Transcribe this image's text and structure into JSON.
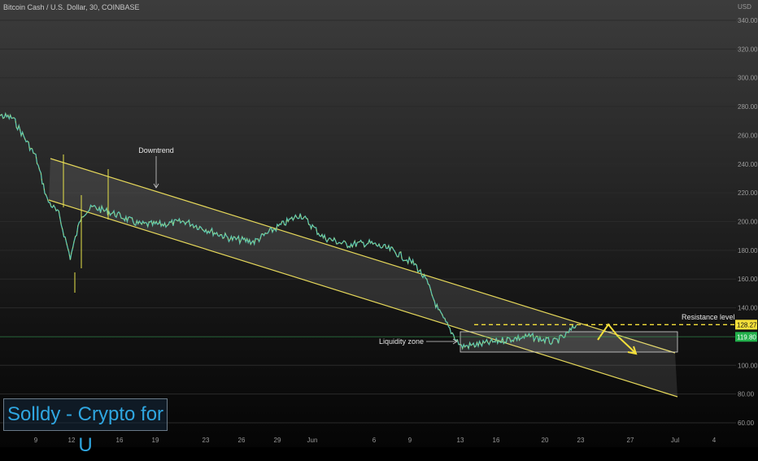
{
  "header": {
    "symbol_title": "Bitcoin Cash / U.S. Dollar, 30, COINBASE"
  },
  "watermark": {
    "text": "Solldy - Crypto for U"
  },
  "colors": {
    "price_line": "#5ec8b0",
    "price_alt": "#e7e34a",
    "channel": "#e6d85a",
    "resistance": "#f5e03a",
    "last_price": "#22b14c",
    "grid": "#2a2a2a"
  },
  "chart_data": {
    "type": "line",
    "title": "Bitcoin Cash / U.S. Dollar, 30, COINBASE",
    "y_axis_label": "USD",
    "ylim": [
      60,
      340
    ],
    "y_ticks": [
      60,
      80,
      100,
      120,
      140,
      160,
      180,
      200,
      220,
      240,
      260,
      280,
      300,
      320,
      340
    ],
    "y_tick_labels": [
      "60.00",
      "80.00",
      "100.00",
      "120.00",
      "140.00",
      "160.00",
      "180.00",
      "200.00",
      "220.00",
      "240.00",
      "260.00",
      "280.00",
      "300.00",
      "320.00",
      "340.00"
    ],
    "x_tick_labels": [
      "9",
      "12",
      "16",
      "19",
      "23",
      "26",
      "29",
      "Jun",
      "6",
      "9",
      "13",
      "16",
      "20",
      "23",
      "27",
      "Jul",
      "4"
    ],
    "series": [
      {
        "x": [
          "May 5",
          "May 7",
          "May 9",
          "May 10",
          "May 11",
          "May 12",
          "May 13",
          "May 14",
          "May 16",
          "May 18",
          "May 20",
          "May 22",
          "May 24",
          "May 26",
          "May 28",
          "May 30",
          "Jun 1",
          "Jun 3",
          "Jun 5",
          "Jun 7",
          "Jun 9",
          "Jun 11",
          "Jun 12",
          "Jun 13",
          "Jun 14",
          "Jun 15",
          "Jun 17",
          "Jun 19",
          "Jun 21",
          "Jun 23",
          "Jun 24",
          "Jun 25"
        ],
        "values": [
          275,
          272,
          245,
          215,
          205,
          175,
          205,
          210,
          205,
          198,
          198,
          200,
          194,
          188,
          186,
          196,
          205,
          189,
          184,
          185,
          180,
          170,
          158,
          138,
          125,
          113,
          115,
          118,
          120,
          116,
          120,
          128
        ]
      }
    ],
    "annotations": {
      "downtrend_label": "Downtrend",
      "liquidity_label": "Liquidity zone",
      "resistance_label": "Resistance level",
      "resistance_price": "128.27",
      "last_price": "119.80"
    }
  }
}
